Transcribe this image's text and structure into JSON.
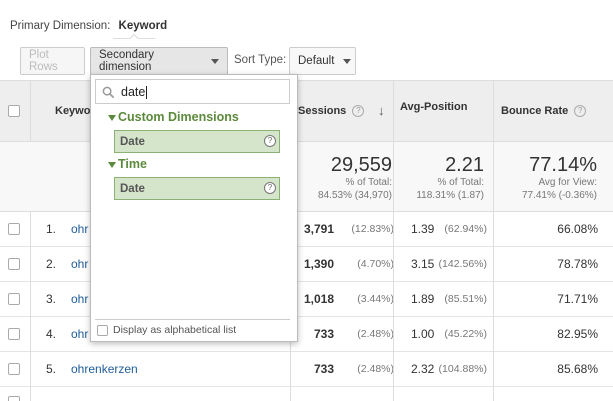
{
  "primary_dimension": {
    "label": "Primary Dimension:",
    "value": "Keyword"
  },
  "toolbar": {
    "plot_rows": "Plot Rows",
    "secondary_dimension": "Secondary dimension",
    "sort_type_label": "Sort Type:",
    "sort_type_value": "Default"
  },
  "table": {
    "headers": {
      "keyword": "Keywor",
      "sessions": "Sessions",
      "avg_position": "Avg-Position",
      "bounce_rate": "Bounce Rate"
    },
    "totals": {
      "sessions": "29,559",
      "sessions_sub1": "% of Total:",
      "sessions_sub2": "84.53% (34,970)",
      "avg_position": "2.21",
      "avg_position_sub1": "% of Total:",
      "avg_position_sub2": "118.31% (1.87)",
      "bounce_rate": "77.14%",
      "bounce_rate_sub1": "Avg for View:",
      "bounce_rate_sub2": "77.41% (-0.36%)"
    },
    "rows": [
      {
        "num": "1.",
        "keyword": "ohr",
        "sessions": "3,791",
        "sessions_pct": "(12.83%)",
        "position": "1.39",
        "position_pct": "(62.94%)",
        "bounce": "66.08%"
      },
      {
        "num": "2.",
        "keyword": "ohr",
        "sessions": "1,390",
        "sessions_pct": "(4.70%)",
        "position": "3.15",
        "position_pct": "(142.56%)",
        "bounce": "78.78%"
      },
      {
        "num": "3.",
        "keyword": "ohr",
        "sessions": "1,018",
        "sessions_pct": "(3.44%)",
        "position": "1.89",
        "position_pct": "(85.51%)",
        "bounce": "71.71%"
      },
      {
        "num": "4.",
        "keyword": "ohr",
        "sessions": "733",
        "sessions_pct": "(2.48%)",
        "position": "1.00",
        "position_pct": "(45.22%)",
        "bounce": "82.95%"
      },
      {
        "num": "5.",
        "keyword": "ohrenkerzen",
        "sessions": "733",
        "sessions_pct": "(2.48%)",
        "position": "2.32",
        "position_pct": "(104.88%)",
        "bounce": "85.68%"
      }
    ]
  },
  "dropdown": {
    "search_value": "date",
    "groups": [
      {
        "name": "Custom Dimensions",
        "option": "Date"
      },
      {
        "name": "Time",
        "option": "Date"
      }
    ],
    "alphabetical_label": "Display as alphabetical list"
  },
  "colors": {
    "group_text": "#5c8a3c",
    "option_bg": "#d5e5cb",
    "link": "#1f5c99"
  }
}
